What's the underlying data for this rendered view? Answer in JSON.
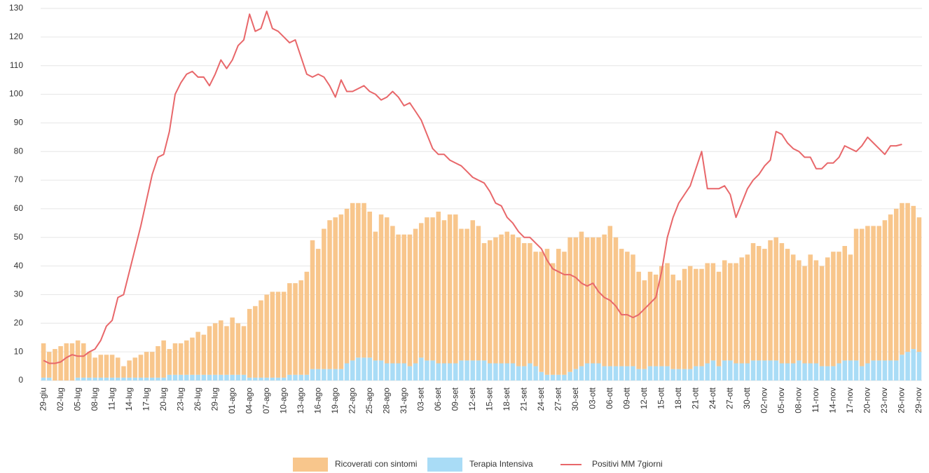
{
  "chart_data": {
    "type": "bar",
    "stacked": true,
    "categories": [
      "29-giu",
      null,
      null,
      "02-lug",
      null,
      null,
      "05-lug",
      null,
      null,
      "08-lug",
      null,
      null,
      "11-lug",
      null,
      null,
      "14-lug",
      null,
      null,
      "17-lug",
      null,
      null,
      "20-lug",
      null,
      null,
      "23-lug",
      null,
      null,
      "26-lug",
      null,
      null,
      "29-lug",
      null,
      null,
      "01-ago",
      null,
      null,
      "04-ago",
      null,
      null,
      "07-ago",
      null,
      null,
      "10-ago",
      null,
      null,
      "13-ago",
      null,
      null,
      "16-ago",
      null,
      null,
      "19-ago",
      null,
      null,
      "22-ago",
      null,
      null,
      "25-ago",
      null,
      null,
      "28-ago",
      null,
      null,
      "31-ago",
      null,
      null,
      "03-set",
      null,
      null,
      "06-set",
      null,
      null,
      "09-set",
      null,
      null,
      "12-set",
      null,
      null,
      "15-set",
      null,
      null,
      "18-set",
      null,
      null,
      "21-set",
      null,
      null,
      "24-set",
      null,
      null,
      "27-set",
      null,
      null,
      "30-set",
      null,
      null,
      "03-ott",
      null,
      null,
      "06-ott",
      null,
      null,
      "09-ott",
      null,
      null,
      "12-ott",
      null,
      null,
      "15-ott",
      null,
      null,
      "18-ott",
      null,
      null,
      "21-ott",
      null,
      null,
      "24-ott",
      null,
      null,
      "27-ott",
      null,
      null,
      "30-ott",
      null,
      null,
      "02-nov",
      null,
      null,
      "05-nov",
      null,
      null,
      "08-nov",
      null,
      null,
      "11-nov",
      null,
      null,
      "14-nov",
      null,
      null,
      "17-nov",
      null,
      null,
      "20-nov",
      null,
      null,
      "23-nov",
      null,
      null,
      "26-nov",
      null,
      null,
      "29-nov"
    ],
    "series": [
      {
        "name": "Terapia Intensiva",
        "color": "#a9dcf6",
        "type": "bar",
        "values": [
          1,
          1,
          0,
          0,
          0,
          0,
          1,
          1,
          1,
          1,
          1,
          1,
          1,
          1,
          1,
          1,
          1,
          1,
          1,
          1,
          1,
          1,
          2,
          2,
          2,
          2,
          2,
          2,
          2,
          2,
          2,
          2,
          2,
          2,
          2,
          2,
          1,
          1,
          1,
          1,
          1,
          1,
          1,
          2,
          2,
          2,
          2,
          4,
          4,
          4,
          4,
          4,
          4,
          6,
          7,
          8,
          8,
          8,
          7,
          7,
          6,
          6,
          6,
          6,
          5,
          6,
          8,
          7,
          7,
          6,
          6,
          6,
          6,
          7,
          7,
          7,
          7,
          7,
          6,
          6,
          6,
          6,
          6,
          5,
          5,
          6,
          5,
          3,
          2,
          2,
          2,
          2,
          3,
          4,
          5,
          6,
          6,
          6,
          5,
          5,
          5,
          5,
          5,
          5,
          4,
          4,
          5,
          5,
          5,
          5,
          4,
          4,
          4,
          4,
          5,
          5,
          6,
          7,
          5,
          7,
          7,
          6,
          6,
          6,
          7,
          7,
          7,
          7,
          7,
          6,
          6,
          6,
          7,
          6,
          6,
          6,
          5,
          5,
          5,
          6,
          7,
          7,
          7,
          5,
          6,
          7,
          7,
          7,
          7,
          7,
          9,
          10,
          11,
          10
        ]
      },
      {
        "name": "Ricoverati con sintomi",
        "color": "#f8c68c",
        "type": "bar",
        "values": [
          12,
          9,
          11,
          12,
          13,
          13,
          13,
          12,
          9,
          7,
          8,
          8,
          8,
          7,
          4,
          6,
          7,
          8,
          9,
          9,
          11,
          13,
          9,
          11,
          11,
          12,
          13,
          15,
          14,
          17,
          18,
          19,
          17,
          20,
          18,
          17,
          24,
          25,
          27,
          29,
          30,
          30,
          30,
          32,
          32,
          33,
          36,
          45,
          42,
          49,
          52,
          53,
          54,
          54,
          55,
          54,
          54,
          51,
          45,
          51,
          51,
          48,
          45,
          45,
          46,
          47,
          47,
          50,
          50,
          53,
          50,
          52,
          52,
          46,
          46,
          49,
          47,
          41,
          43,
          44,
          45,
          46,
          45,
          45,
          43,
          42,
          40,
          42,
          44,
          39,
          44,
          43,
          47,
          46,
          47,
          44,
          44,
          44,
          46,
          49,
          45,
          41,
          40,
          39,
          34,
          31,
          33,
          32,
          35,
          36,
          33,
          31,
          35,
          36,
          34,
          34,
          35,
          34,
          33,
          35,
          34,
          35,
          37,
          38,
          41,
          40,
          39,
          42,
          43,
          42,
          40,
          38,
          35,
          34,
          38,
          36,
          35,
          38,
          40,
          39,
          40,
          37,
          46,
          48,
          48,
          47,
          47,
          49,
          51,
          53,
          53,
          52,
          50,
          47
        ]
      },
      {
        "name": "Positivi MM 7giorni",
        "color": "#e8676a",
        "type": "line",
        "values": [
          7,
          6,
          6,
          6.5,
          8,
          9,
          8.5,
          8.5,
          10,
          11,
          14,
          19,
          21,
          29,
          30,
          38,
          46,
          54,
          63,
          72,
          78,
          79,
          87,
          100,
          104,
          107,
          108,
          106,
          106,
          103,
          107,
          112,
          109,
          112,
          117,
          119,
          128,
          122,
          123,
          129,
          123,
          122,
          120,
          118,
          119,
          113,
          107,
          106,
          107,
          106,
          103,
          99,
          105,
          101,
          101,
          102,
          103,
          101,
          100,
          98,
          99,
          101,
          99,
          96,
          97,
          94,
          91,
          86,
          81,
          79,
          79,
          77,
          76,
          75,
          73,
          71,
          70,
          69,
          66,
          62,
          61,
          57,
          55,
          52,
          50,
          50,
          48,
          46,
          42,
          39,
          38,
          37,
          37,
          36,
          34,
          33,
          34,
          31,
          29,
          28,
          26,
          23,
          23,
          22,
          23,
          25,
          27,
          29,
          38,
          50,
          57,
          62,
          65,
          68,
          74,
          80,
          67,
          67,
          67,
          68,
          65,
          57,
          62,
          67,
          70,
          72,
          75,
          77,
          87,
          86,
          83,
          81,
          80,
          78,
          78,
          74,
          74,
          76,
          76,
          78,
          82,
          81,
          80,
          82,
          85,
          83,
          81,
          79,
          82,
          82,
          82.5,
          null,
          null,
          null
        ]
      }
    ],
    "ylim": [
      0,
      130
    ],
    "yticks": [
      0,
      10,
      20,
      30,
      40,
      50,
      60,
      70,
      80,
      90,
      100,
      110,
      120,
      130
    ],
    "grid": true,
    "legend": "bottom"
  }
}
